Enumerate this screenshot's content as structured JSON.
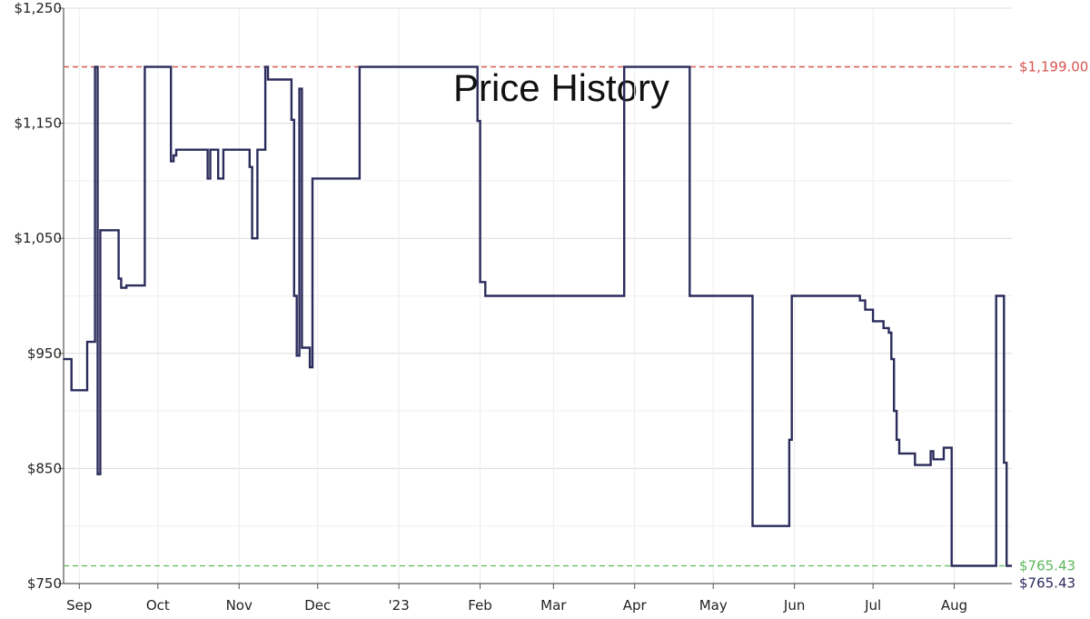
{
  "chart_data": {
    "type": "line",
    "title": "Price History",
    "xlabel": "",
    "ylabel": "",
    "ylim": [
      750,
      1250
    ],
    "y_ticks": [
      "$750",
      "$850",
      "$950",
      "$1,050",
      "$1,150",
      "$1,250"
    ],
    "y_tick_values": [
      750,
      850,
      950,
      1050,
      1150,
      1250
    ],
    "x_ticks": [
      "Sep",
      "Oct",
      "Nov",
      "Dec",
      "'23",
      "Feb",
      "Mar",
      "Apr",
      "May",
      "Jun",
      "Jul",
      "Aug"
    ],
    "x_tick_dates": [
      "2022-09-01",
      "2022-10-01",
      "2022-11-01",
      "2022-12-01",
      "2023-01-01",
      "2023-02-01",
      "2023-03-01",
      "2023-04-01",
      "2023-05-01",
      "2023-06-01",
      "2023-07-01",
      "2023-08-01"
    ],
    "xlim": [
      "2022-08-26",
      "2023-08-23"
    ],
    "grid": true,
    "line_color": "#2b2b5c",
    "reference_lines": [
      {
        "label": "$1,199.00",
        "value": 1199,
        "color": "#d9534f",
        "style": "dashed"
      },
      {
        "label": "$765.43",
        "value": 765.43,
        "color": "#5cb85c",
        "style": "dashed"
      }
    ],
    "current_price_label": "$765.43",
    "series": [
      {
        "name": "",
        "step": true,
        "points": [
          [
            "2022-08-26",
            945
          ],
          [
            "2022-08-29",
            918
          ],
          [
            "2022-09-04",
            960
          ],
          [
            "2022-09-07",
            1199
          ],
          [
            "2022-09-08",
            910
          ],
          [
            "2022-09-08",
            845
          ],
          [
            "2022-09-09",
            1057
          ],
          [
            "2022-09-16",
            1015
          ],
          [
            "2022-09-17",
            1007
          ],
          [
            "2022-09-19",
            1009
          ],
          [
            "2022-09-26",
            1199
          ],
          [
            "2022-10-06",
            1117
          ],
          [
            "2022-10-07",
            1122
          ],
          [
            "2022-10-08",
            1127
          ],
          [
            "2022-10-20",
            1102
          ],
          [
            "2022-10-21",
            1127
          ],
          [
            "2022-10-24",
            1102
          ],
          [
            "2022-10-26",
            1127
          ],
          [
            "2022-11-05",
            1112
          ],
          [
            "2022-11-06",
            1050
          ],
          [
            "2022-11-08",
            1127
          ],
          [
            "2022-11-11",
            1199
          ],
          [
            "2022-11-12",
            1188
          ],
          [
            "2022-11-21",
            1153
          ],
          [
            "2022-11-22",
            1000
          ],
          [
            "2022-11-23",
            948
          ],
          [
            "2022-11-24",
            1180
          ],
          [
            "2022-11-25",
            955
          ],
          [
            "2022-11-28",
            938
          ],
          [
            "2022-11-29",
            1102
          ],
          [
            "2022-12-17",
            1199
          ],
          [
            "2023-01-31",
            1152
          ],
          [
            "2023-02-01",
            1012
          ],
          [
            "2023-02-03",
            1000
          ],
          [
            "2023-03-28",
            1199
          ],
          [
            "2023-04-22",
            1000
          ],
          [
            "2023-05-16",
            800
          ],
          [
            "2023-05-30",
            875
          ],
          [
            "2023-05-31",
            1000
          ],
          [
            "2023-06-26",
            996
          ],
          [
            "2023-06-28",
            988
          ],
          [
            "2023-07-01",
            978
          ],
          [
            "2023-07-05",
            972
          ],
          [
            "2023-07-07",
            968
          ],
          [
            "2023-07-08",
            945
          ],
          [
            "2023-07-09",
            900
          ],
          [
            "2023-07-10",
            875
          ],
          [
            "2023-07-11",
            863
          ],
          [
            "2023-07-17",
            853
          ],
          [
            "2023-07-23",
            865
          ],
          [
            "2023-07-24",
            858
          ],
          [
            "2023-07-28",
            868
          ],
          [
            "2023-07-31",
            765.43
          ],
          [
            "2023-08-17",
            1000
          ],
          [
            "2023-08-20",
            855
          ],
          [
            "2023-08-21",
            765.43
          ]
        ]
      }
    ]
  }
}
